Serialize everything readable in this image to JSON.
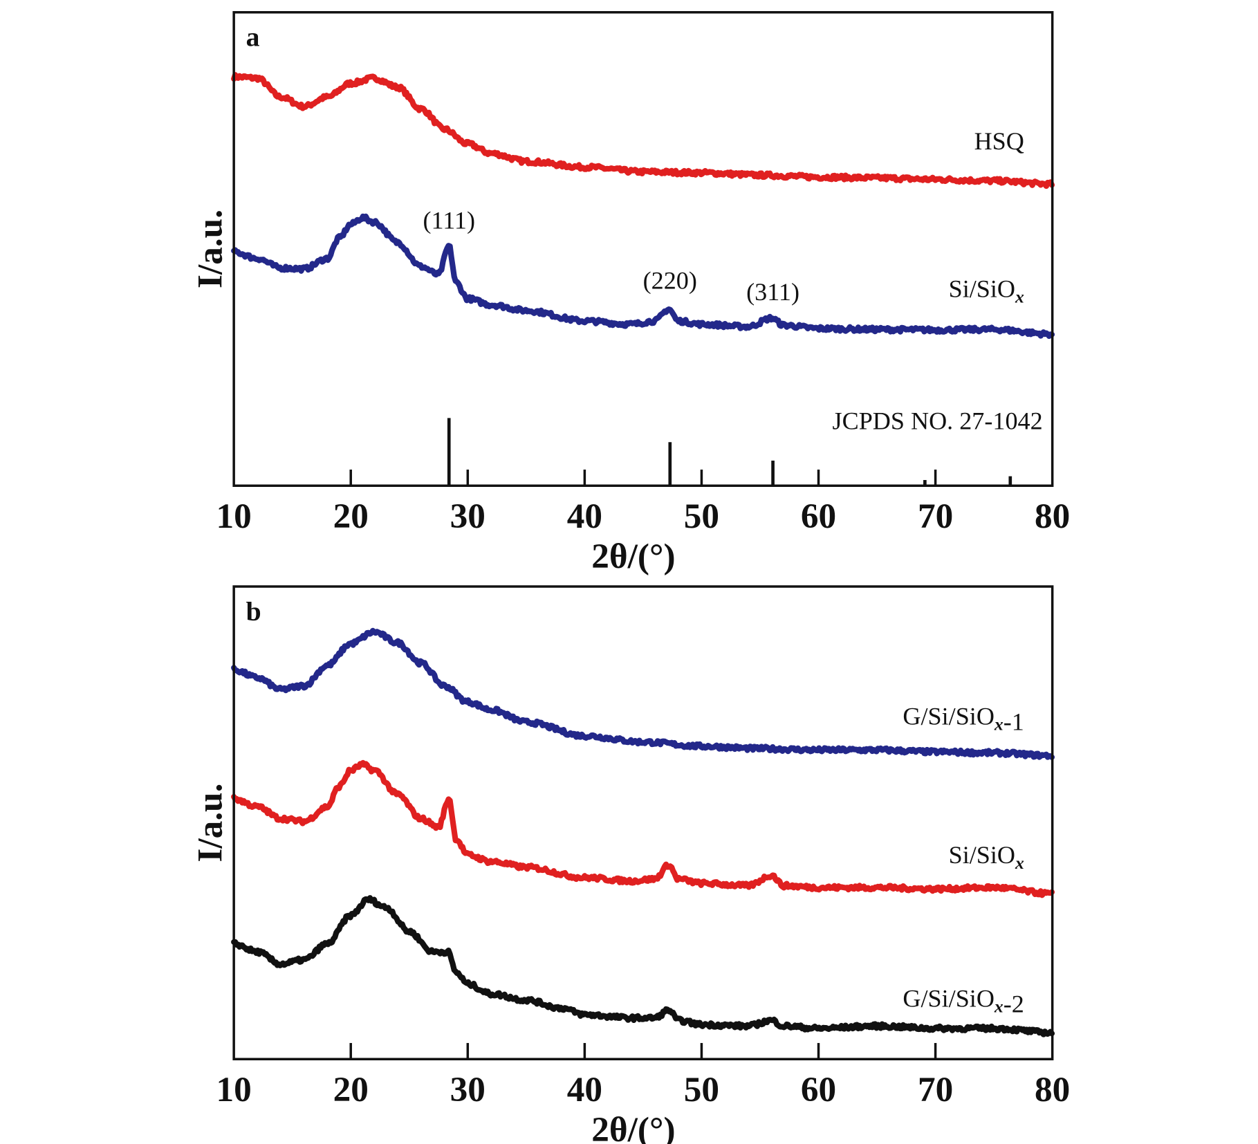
{
  "chart_data": [
    {
      "type": "line",
      "panel_label": "a",
      "xlabel": "2θ/(°)",
      "ylabel": "I/a.u.",
      "xlim": [
        10,
        80
      ],
      "ylim": [
        0,
        100
      ],
      "xticks": [
        10,
        20,
        30,
        40,
        50,
        60,
        70,
        80
      ],
      "grid": false,
      "series": [
        {
          "name": "HSQ",
          "color": "#e02020",
          "x": [
            10,
            12,
            14,
            16,
            18,
            20,
            22,
            24,
            26,
            28,
            30,
            32,
            35,
            40,
            45,
            50,
            55,
            60,
            65,
            70,
            75,
            80
          ],
          "y": [
            86.4,
            86.1,
            82.1,
            80.1,
            82.1,
            85.0,
            86.1,
            84.2,
            79.6,
            75.3,
            72.2,
            70.2,
            68.5,
            67.3,
            66.3,
            66.1,
            65.6,
            65.2,
            65.0,
            64.7,
            64.4,
            63.7
          ]
        },
        {
          "name": "Si/SiOx",
          "color": "#23288a",
          "x": [
            10,
            12,
            14,
            16,
            18,
            19,
            20,
            21,
            22,
            24,
            26,
            27.5,
            28.4,
            29,
            30,
            32,
            35,
            40,
            44,
            46,
            47.2,
            48,
            50,
            54,
            56,
            57,
            60,
            65,
            70,
            75,
            80
          ],
          "y": [
            49.4,
            48.0,
            46.0,
            45.8,
            48.0,
            52.3,
            55.2,
            56.6,
            55.7,
            51.4,
            46.3,
            44.6,
            50.6,
            42.9,
            39.5,
            38.2,
            37.0,
            34.8,
            34.1,
            34.8,
            37.3,
            34.8,
            34.1,
            33.6,
            35.4,
            33.9,
            33.2,
            33.0,
            32.9,
            33.0,
            32.0
          ]
        }
      ],
      "reference": {
        "name": "JCPDS NO. 27-1042",
        "color": "#111111",
        "x": [
          28.4,
          47.3,
          56.1,
          69.1,
          76.4
        ],
        "y": [
          14.3,
          9.2,
          5.3,
          1.2,
          2.0
        ]
      },
      "annotations": [
        {
          "text": "(111)",
          "x": 28.4
        },
        {
          "text": "(220)",
          "x": 47.3
        },
        {
          "text": "(311)",
          "x": 56.1
        }
      ]
    },
    {
      "type": "line",
      "panel_label": "b",
      "xlabel": "2θ/(°)",
      "ylabel": "I/a.u.",
      "xlim": [
        10,
        80
      ],
      "ylim": [
        0,
        100
      ],
      "xticks": [
        10,
        20,
        30,
        40,
        50,
        60,
        70,
        80
      ],
      "grid": false,
      "series": [
        {
          "name": "G/Si/SiOx-1",
          "color": "#23288a",
          "x": [
            10,
            12,
            14,
            16,
            18,
            20,
            22,
            24,
            26,
            28,
            30,
            32,
            35,
            40,
            45,
            50,
            55,
            60,
            65,
            70,
            75,
            80
          ],
          "y": [
            82.4,
            80.7,
            78.2,
            79.0,
            83.3,
            87.9,
            90.4,
            88.1,
            83.8,
            79.0,
            75.6,
            73.9,
            71.3,
            68.4,
            67.1,
            66.2,
            65.7,
            65.4,
            65.4,
            65.0,
            64.8,
            64.2
          ]
        },
        {
          "name": "Si/SiOx",
          "color": "#e02020",
          "x": [
            10,
            12,
            14,
            16,
            18,
            19,
            20,
            21,
            22,
            24,
            26,
            27.5,
            28.4,
            29,
            30,
            32,
            35,
            40,
            44,
            46,
            47.2,
            48,
            50,
            54,
            56,
            57,
            60,
            65,
            70,
            75,
            80
          ],
          "y": [
            55.1,
            53.4,
            50.9,
            50.3,
            53.4,
            57.7,
            61.1,
            62.3,
            61.1,
            56.0,
            50.9,
            49.1,
            55.1,
            46.6,
            43.2,
            41.8,
            40.6,
            38.4,
            37.7,
            38.1,
            41.1,
            38.1,
            37.2,
            36.7,
            38.9,
            36.7,
            36.3,
            36.3,
            36.0,
            36.3,
            35.0
          ]
        },
        {
          "name": "G/Si/SiOx-2",
          "color": "#111111",
          "x": [
            10,
            12,
            14,
            16,
            18,
            20,
            21.5,
            23,
            25,
            27,
            28.3,
            29,
            30,
            32,
            35,
            38,
            40,
            44,
            46,
            47.2,
            48,
            50,
            54,
            56,
            57,
            60,
            65,
            70,
            75,
            80
          ],
          "y": [
            24.4,
            22.7,
            20.1,
            21.0,
            24.4,
            30.4,
            33.8,
            32.1,
            27.0,
            22.7,
            22.7,
            18.4,
            15.9,
            13.8,
            12.5,
            10.8,
            9.4,
            8.7,
            8.7,
            10.4,
            8.2,
            7.3,
            7.0,
            8.2,
            7.0,
            6.5,
            7.0,
            6.5,
            6.5,
            5.6
          ]
        }
      ],
      "annotations": []
    }
  ]
}
